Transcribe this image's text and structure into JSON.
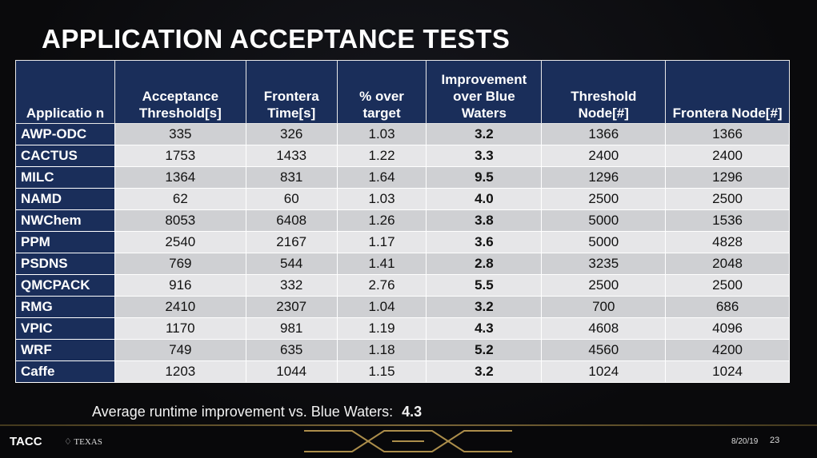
{
  "title": "APPLICATION ACCEPTANCE TESTS",
  "headers": [
    "Applicatio n",
    "Acceptance Threshold[s]",
    "Frontera Time[s]",
    "% over target",
    "Improvement over Blue Waters",
    "Threshold Node[#]",
    "Frontera Node[#]"
  ],
  "rows": [
    {
      "app": "AWP-ODC",
      "threshold": "335",
      "time": "326",
      "over": "1.03",
      "improvement": "3.2",
      "threshold_node": "1366",
      "frontera_node": "1366"
    },
    {
      "app": "CACTUS",
      "threshold": "1753",
      "time": "1433",
      "over": "1.22",
      "improvement": "3.3",
      "threshold_node": "2400",
      "frontera_node": "2400"
    },
    {
      "app": "MILC",
      "threshold": "1364",
      "time": "831",
      "over": "1.64",
      "improvement": "9.5",
      "threshold_node": "1296",
      "frontera_node": "1296"
    },
    {
      "app": "NAMD",
      "threshold": "62",
      "time": "60",
      "over": "1.03",
      "improvement": "4.0",
      "threshold_node": "2500",
      "frontera_node": "2500"
    },
    {
      "app": "NWChem",
      "threshold": "8053",
      "time": "6408",
      "over": "1.26",
      "improvement": "3.8",
      "threshold_node": "5000",
      "frontera_node": "1536"
    },
    {
      "app": "PPM",
      "threshold": "2540",
      "time": "2167",
      "over": "1.17",
      "improvement": "3.6",
      "threshold_node": "5000",
      "frontera_node": "4828"
    },
    {
      "app": "PSDNS",
      "threshold": "769",
      "time": "544",
      "over": "1.41",
      "improvement": "2.8",
      "threshold_node": "3235",
      "frontera_node": "2048"
    },
    {
      "app": "QMCPACK",
      "threshold": "916",
      "time": "332",
      "over": "2.76",
      "improvement": "5.5",
      "threshold_node": "2500",
      "frontera_node": "2500"
    },
    {
      "app": "RMG",
      "threshold": "2410",
      "time": "2307",
      "over": "1.04",
      "improvement": "3.2",
      "threshold_node": "700",
      "frontera_node": "686"
    },
    {
      "app": "VPIC",
      "threshold": "1170",
      "time": "981",
      "over": "1.19",
      "improvement": "4.3",
      "threshold_node": "4608",
      "frontera_node": "4096"
    },
    {
      "app": "WRF",
      "threshold": "749",
      "time": "635",
      "over": "1.18",
      "improvement": "5.2",
      "threshold_node": "4560",
      "frontera_node": "4200"
    },
    {
      "app": "Caffe",
      "threshold": "1203",
      "time": "1044",
      "over": "1.15",
      "improvement": "3.2",
      "threshold_node": "1024",
      "frontera_node": "1024"
    }
  ],
  "summary": {
    "label": "Average runtime improvement vs. Blue Waters:",
    "value": "4.3"
  },
  "footer": {
    "logo": "TACC",
    "university": "TEXAS",
    "date": "8/20/19",
    "page": "23"
  },
  "colors": {
    "header_bg": "#1a2e5a",
    "row_dark": "#cfd0d3",
    "row_light": "#e6e6e8",
    "accent_gold": "#c9a657"
  }
}
